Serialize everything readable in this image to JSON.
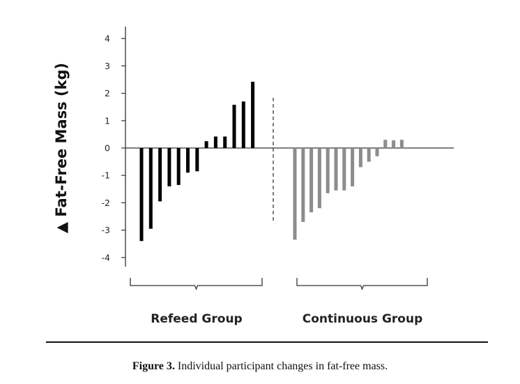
{
  "chart_data": {
    "type": "bar",
    "ylabel": "▲ Fat-Free Mass (kg)",
    "ylim": [
      -4.5,
      4.5
    ],
    "yticks": [
      4,
      3,
      2,
      1,
      0,
      -1,
      -2,
      -3,
      -4
    ],
    "ytick_labels": [
      "4",
      "3",
      "2",
      "1",
      "0",
      "-1",
      "-2",
      "-3",
      "-4"
    ],
    "grid": false,
    "legend": "none",
    "series": [
      {
        "group": "Refeed Group",
        "color": "#000000",
        "values": [
          -3.4,
          -2.95,
          -1.95,
          -1.4,
          -1.35,
          -0.9,
          -0.85,
          0.25,
          0.42,
          0.42,
          1.58,
          1.7,
          2.42
        ]
      },
      {
        "group": "Continuous Group",
        "color": "#8c8c8c",
        "values": [
          -3.35,
          -2.7,
          -2.35,
          -2.2,
          -1.65,
          -1.55,
          -1.55,
          -1.4,
          -0.7,
          -0.5,
          -0.3,
          0.3,
          0.28,
          0.3
        ]
      }
    ],
    "groups": [
      "Refeed Group",
      "Continuous Group"
    ]
  },
  "caption": {
    "label": "Figure 3.",
    "text": " Individual participant changes in fat-free mass."
  }
}
